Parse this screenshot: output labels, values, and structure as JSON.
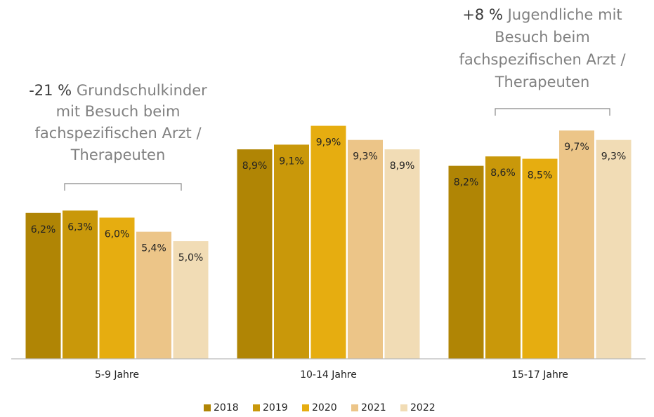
{
  "chart_data": {
    "type": "bar",
    "categories": [
      "5-9 Jahre",
      "10-14 Jahre",
      "15-17 Jahre"
    ],
    "series": [
      {
        "name": "2018",
        "color": "#b08505",
        "values": [
          6.2,
          8.9,
          8.2
        ],
        "value_labels": [
          "6,2%",
          "8,9%",
          "8,2%"
        ]
      },
      {
        "name": "2019",
        "color": "#c9980a",
        "values": [
          6.3,
          9.1,
          8.6
        ],
        "value_labels": [
          "6,3%",
          "9,1%",
          "8,6%"
        ]
      },
      {
        "name": "2020",
        "color": "#e6ad10",
        "values": [
          6.0,
          9.9,
          8.5
        ],
        "value_labels": [
          "6,0%",
          "9,9%",
          "8,5%"
        ]
      },
      {
        "name": "2021",
        "color": "#ecc588",
        "values": [
          5.4,
          9.3,
          9.7
        ],
        "value_labels": [
          "5,4%",
          "9,3%",
          "9,7%"
        ]
      },
      {
        "name": "2022",
        "color": "#f1dcb5",
        "values": [
          5.0,
          8.9,
          9.3
        ],
        "value_labels": [
          "5,0%",
          "8,9%",
          "9,3%"
        ]
      }
    ],
    "ylim": [
      0,
      12
    ],
    "legend": "bottom",
    "annotations": [
      {
        "highlight": "-21 %",
        "text": [
          "Grundschulkinder",
          "mit Besuch beim",
          "fachspezifischen Arzt /",
          "Therapeuten"
        ]
      },
      {
        "highlight": "+8 %",
        "text": [
          "Jugendliche mit",
          "Besuch beim",
          "fachspezifischen Arzt /",
          "Therapeuten"
        ]
      }
    ]
  }
}
